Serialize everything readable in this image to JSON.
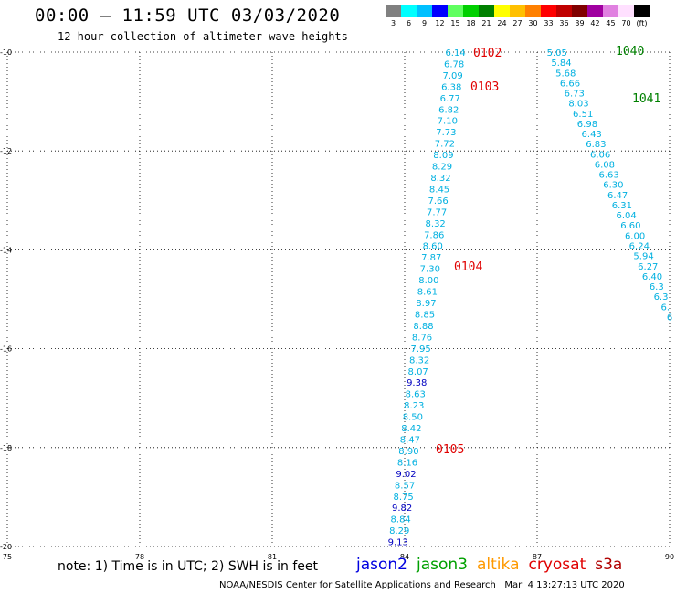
{
  "header": {
    "title": "00:00 – 11:59 UTC 03/03/2020",
    "subtitle": "12 hour collection of altimeter wave heights"
  },
  "legend": {
    "labels": [
      "3",
      "6",
      "9",
      "12",
      "15",
      "18",
      "21",
      "24",
      "27",
      "30",
      "33",
      "36",
      "39",
      "42",
      "45",
      "70",
      "(ft)"
    ],
    "colors": [
      "#808080",
      "#00ffff",
      "#00c0ff",
      "#0000ff",
      "#60ff60",
      "#00d000",
      "#008000",
      "#ffff00",
      "#ffc000",
      "#ff8000",
      "#ff0000",
      "#c00000",
      "#800000",
      "#a000a0",
      "#e080e0",
      "#ffe0ff",
      "#000000"
    ]
  },
  "map": {
    "lon_labels": [
      "75",
      "78",
      "81",
      "84",
      "87",
      "90"
    ],
    "lat_labels": [
      "-10",
      "-12",
      "-14",
      "-16",
      "-18",
      "-20"
    ],
    "lon_range": [
      75,
      90
    ],
    "lat_range": [
      -10,
      -20
    ],
    "grid": "dotted"
  },
  "tracks": [
    {
      "satellite": "jason3",
      "values": [
        "6.14",
        "6.78",
        "7.09",
        "6.38",
        "6.77",
        "6.82",
        "7.10",
        "7.73",
        "7.72",
        "8.09",
        "8.29",
        "8.32",
        "8.45",
        "7.66",
        "7.77",
        "8.32",
        "7.86",
        "8.60",
        "7.87",
        "7.30",
        "8.00",
        "8.61",
        "8.97",
        "8.85",
        "8.88",
        "8.76",
        "7.95",
        "8.32",
        "8.07",
        "9.38",
        "8.63",
        "8.23",
        "8.50",
        "8.42",
        "8.47",
        "8.90",
        "8.16",
        "9.02",
        "8.57",
        "8.75",
        "9.82",
        "8.84",
        "8.29",
        "9.13"
      ],
      "colors": [
        "c",
        "c",
        "c",
        "c",
        "c",
        "c",
        "c",
        "c",
        "c",
        "c",
        "c",
        "c",
        "c",
        "c",
        "c",
        "c",
        "c",
        "c",
        "c",
        "c",
        "c",
        "c",
        "c",
        "c",
        "c",
        "c",
        "c",
        "c",
        "c",
        "b",
        "c",
        "c",
        "c",
        "c",
        "c",
        "c",
        "c",
        "b",
        "c",
        "c",
        "b",
        "c",
        "c",
        "b"
      ],
      "lon_start": 85.15,
      "lon_end": 83.85,
      "lat_start": -10.0,
      "lat_end": -19.9
    },
    {
      "satellite": "jason3",
      "values": [
        "5.05",
        "5.84",
        "5.68",
        "6.66",
        "6.73",
        "8.03",
        "6.51",
        "6.98",
        "6.43",
        "6.83",
        "6.06",
        "6.08",
        "6.63",
        "6.30",
        "6.47",
        "6.31",
        "6.04",
        "6.60",
        "6.00",
        "6.24",
        "5.94",
        "6.27",
        "6.40",
        "6.3",
        "6.3",
        "6.",
        "6"
      ],
      "colors": [
        "c",
        "c",
        "c",
        "c",
        "c",
        "c",
        "c",
        "c",
        "c",
        "c",
        "c",
        "c",
        "c",
        "c",
        "c",
        "c",
        "c",
        "c",
        "c",
        "c",
        "c",
        "c",
        "c",
        "c",
        "c",
        "c",
        "c"
      ],
      "lon_start": 87.45,
      "lon_end": 90.0,
      "lat_start": -10.0,
      "lat_end": -15.35
    }
  ],
  "pass_labels": [
    {
      "text": "0102",
      "color": "#e00000"
    },
    {
      "text": "0103",
      "color": "#e00000"
    },
    {
      "text": "0104",
      "color": "#e00000"
    },
    {
      "text": "0105",
      "color": "#e00000"
    },
    {
      "text": "1040",
      "color": "#008000"
    },
    {
      "text": "1041",
      "color": "#008000"
    }
  ],
  "footer": {
    "note": "note: 1) Time is in UTC; 2) SWH is in feet",
    "satellites": [
      {
        "name": "jason2",
        "color": "#0000e0"
      },
      {
        "name": "jason3",
        "color": "#00a000"
      },
      {
        "name": "altika",
        "color": "#ff9900"
      },
      {
        "name": "cryosat",
        "color": "#e00000"
      },
      {
        "name": "s3a",
        "color": "#b00000"
      }
    ],
    "credit": "NOAA/NESDIS Center for Satellite Applications and Research   Mar  4 13:27:13 UTC 2020"
  }
}
